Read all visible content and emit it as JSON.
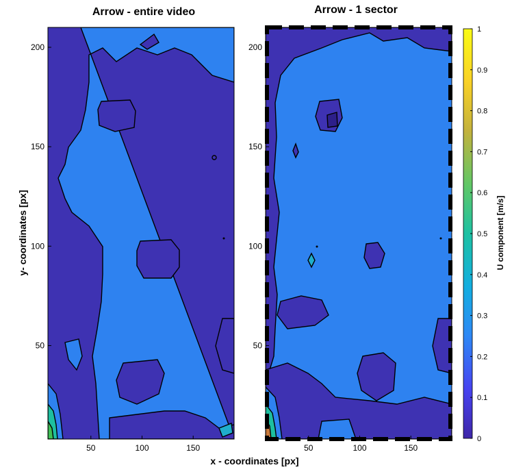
{
  "chart_data": [
    {
      "type": "heatmap",
      "title": "Arrow - entire video",
      "xlim": [
        8,
        190
      ],
      "ylim": [
        3,
        210
      ],
      "xticks": [
        50,
        100,
        150
      ],
      "yticks": [
        50,
        100,
        150,
        200
      ],
      "ylabel": "y- coordinates [px]",
      "regions": [
        {
          "label": "background",
          "level": 0.2
        },
        {
          "label": "left band",
          "level": 0.1
        },
        {
          "label": "patch top",
          "level": 0.1
        },
        {
          "label": "patch mid",
          "level": 0.1
        },
        {
          "label": "patch low",
          "level": 0.1
        },
        {
          "label": "patch right",
          "level": 0.1
        },
        {
          "label": "bottom-left corner",
          "level": 0.5
        }
      ]
    },
    {
      "type": "heatmap",
      "title": "Arrow - 1 sector",
      "xlim": [
        8,
        190
      ],
      "ylim": [
        3,
        210
      ],
      "xticks": [
        50,
        100,
        150
      ],
      "yticks": [
        50,
        100,
        150,
        200
      ],
      "regions": [
        {
          "label": "background",
          "level": 0.2
        },
        {
          "label": "left strip",
          "level": 0.1
        },
        {
          "label": "top band",
          "level": 0.1
        },
        {
          "label": "patch top",
          "level": 0.1
        },
        {
          "label": "patch mid",
          "level": 0.1
        },
        {
          "label": "patch low",
          "level": 0.1
        },
        {
          "label": "patch right",
          "level": 0.1
        },
        {
          "label": "bottom-left corner",
          "level": 0.5
        }
      ]
    }
  ],
  "xlabel": "x - coordinates [px]",
  "colorbar": {
    "label": "U component [m/s]",
    "min": 0,
    "max": 1,
    "ticks": [
      "0",
      "0.1",
      "0.2",
      "0.3",
      "0.4",
      "0.5",
      "0.6",
      "0.7",
      "0.8",
      "0.9",
      "1"
    ],
    "colormap": [
      "#3e26a8",
      "#4743f0",
      "#2e88f5",
      "#13aee0",
      "#1dc1a3",
      "#61c766",
      "#c3b23d",
      "#f9d126",
      "#f9fb15"
    ]
  },
  "colors": {
    "level_0_1": "#3e32b2",
    "level_0_2": "#2e82f0",
    "frame": "#000000",
    "dash": "#000000"
  }
}
